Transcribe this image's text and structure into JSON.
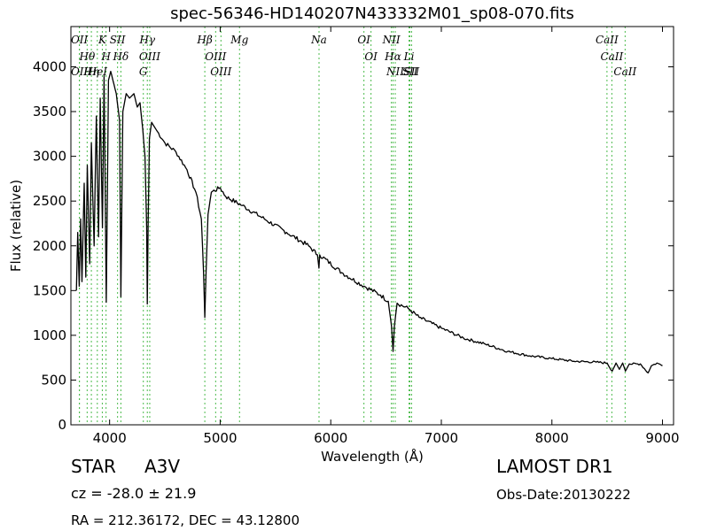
{
  "chart_data": {
    "type": "line",
    "title": "spec-56346-HD140207N433332M01_sp08-070.fits",
    "xlabel": "Wavelength (Å)",
    "ylabel": "Flux (relative)",
    "xlim": [
      3650,
      9100
    ],
    "ylim": [
      0,
      4450
    ],
    "x_ticks": [
      4000,
      5000,
      6000,
      7000,
      8000,
      9000
    ],
    "y_ticks": [
      0,
      500,
      1000,
      1500,
      2000,
      2500,
      3000,
      3500,
      4000
    ],
    "grid": false,
    "line_color": "#000000",
    "marker_color": "#4cbb4c",
    "spectrum_breakpoints": [
      [
        3700,
        1500
      ],
      [
        3712,
        2150
      ],
      [
        3725,
        1550
      ],
      [
        3738,
        2300
      ],
      [
        3750,
        1600
      ],
      [
        3770,
        2700
      ],
      [
        3785,
        1650
      ],
      [
        3798,
        2900
      ],
      [
        3820,
        1800
      ],
      [
        3835,
        3150
      ],
      [
        3860,
        2000
      ],
      [
        3880,
        3450
      ],
      [
        3900,
        2100
      ],
      [
        3915,
        3650
      ],
      [
        3935,
        2200
      ],
      [
        3950,
        3900
      ],
      [
        3970,
        1370
      ],
      [
        3990,
        3850
      ],
      [
        4010,
        3950
      ],
      [
        4030,
        3850
      ],
      [
        4060,
        3700
      ],
      [
        4090,
        3400
      ],
      [
        4102,
        1430
      ],
      [
        4120,
        3500
      ],
      [
        4150,
        3700
      ],
      [
        4180,
        3650
      ],
      [
        4220,
        3700
      ],
      [
        4250,
        3550
      ],
      [
        4275,
        3600
      ],
      [
        4300,
        3300
      ],
      [
        4320,
        3000
      ],
      [
        4335,
        2200
      ],
      [
        4341,
        1350
      ],
      [
        4348,
        2200
      ],
      [
        4360,
        3200
      ],
      [
        4380,
        3380
      ],
      [
        4420,
        3300
      ],
      [
        4500,
        3150
      ],
      [
        4600,
        3050
      ],
      [
        4700,
        2850
      ],
      [
        4780,
        2600
      ],
      [
        4830,
        2300
      ],
      [
        4850,
        1700
      ],
      [
        4861,
        1200
      ],
      [
        4872,
        1700
      ],
      [
        4890,
        2350
      ],
      [
        4920,
        2600
      ],
      [
        5000,
        2650
      ],
      [
        5050,
        2550
      ],
      [
        5200,
        2450
      ],
      [
        5400,
        2300
      ],
      [
        5600,
        2150
      ],
      [
        5800,
        2000
      ],
      [
        5880,
        1900
      ],
      [
        5893,
        1750
      ],
      [
        5900,
        1900
      ],
      [
        6100,
        1700
      ],
      [
        6300,
        1550
      ],
      [
        6450,
        1450
      ],
      [
        6520,
        1380
      ],
      [
        6550,
        1100
      ],
      [
        6563,
        820
      ],
      [
        6575,
        1100
      ],
      [
        6600,
        1360
      ],
      [
        6700,
        1300
      ],
      [
        6800,
        1200
      ],
      [
        7000,
        1080
      ],
      [
        7200,
        970
      ],
      [
        7400,
        900
      ],
      [
        7600,
        820
      ],
      [
        7800,
        770
      ],
      [
        8000,
        740
      ],
      [
        8200,
        710
      ],
      [
        8400,
        700
      ],
      [
        8500,
        690
      ],
      [
        8545,
        600
      ],
      [
        8580,
        690
      ],
      [
        8610,
        620
      ],
      [
        8640,
        690
      ],
      [
        8665,
        600
      ],
      [
        8700,
        680
      ],
      [
        8800,
        680
      ],
      [
        8870,
        580
      ],
      [
        8900,
        660
      ],
      [
        8950,
        690
      ],
      [
        9000,
        660
      ]
    ],
    "emission_lines": [
      {
        "label": "OII",
        "x": 3727
      },
      {
        "label": "Hθ",
        "x": 3797
      },
      {
        "label": "Hη",
        "x": 3835
      },
      {
        "label": "HeI",
        "x": 3889
      },
      {
        "label": "K",
        "x": 3934
      },
      {
        "label": "H",
        "x": 3968
      },
      {
        "label": "SII",
        "x": 4072
      },
      {
        "label": "Hδ",
        "x": 4102
      },
      {
        "label": "Hγ",
        "x": 4341
      },
      {
        "label": "OIII",
        "x": 4363
      },
      {
        "label": "Hβ",
        "x": 4861
      },
      {
        "label": "OIII",
        "x": 4959
      },
      {
        "label": "OIII",
        "x": 5007
      },
      {
        "label": "Mg",
        "x": 5175
      },
      {
        "label": "Na",
        "x": 5894
      },
      {
        "label": "OI",
        "x": 6300
      },
      {
        "label": "OI",
        "x": 6364
      },
      {
        "label": "NII",
        "x": 6548
      },
      {
        "label": "Hα",
        "x": 6563
      },
      {
        "label": "NII",
        "x": 6583
      },
      {
        "label": "Li",
        "x": 6708
      },
      {
        "label": "SII",
        "x": 6716
      },
      {
        "label": "SII",
        "x": 6731
      },
      {
        "label": "CaII",
        "x": 8498
      },
      {
        "label": "CaII",
        "x": 8542
      },
      {
        "label": "CaII",
        "x": 8662
      }
    ],
    "absorption_lines": [
      {
        "label": "OII",
        "x": 3727
      },
      {
        "label": "G",
        "x": 4305
      }
    ]
  },
  "info": {
    "object_type": "STAR",
    "subclass": "A3V",
    "survey": "LAMOST DR1",
    "redshift": "cz = -28.0 ± 21.9",
    "obs_date": "Obs-Date:20130222",
    "coords": "RA = 212.36172, DEC = 43.12800"
  }
}
